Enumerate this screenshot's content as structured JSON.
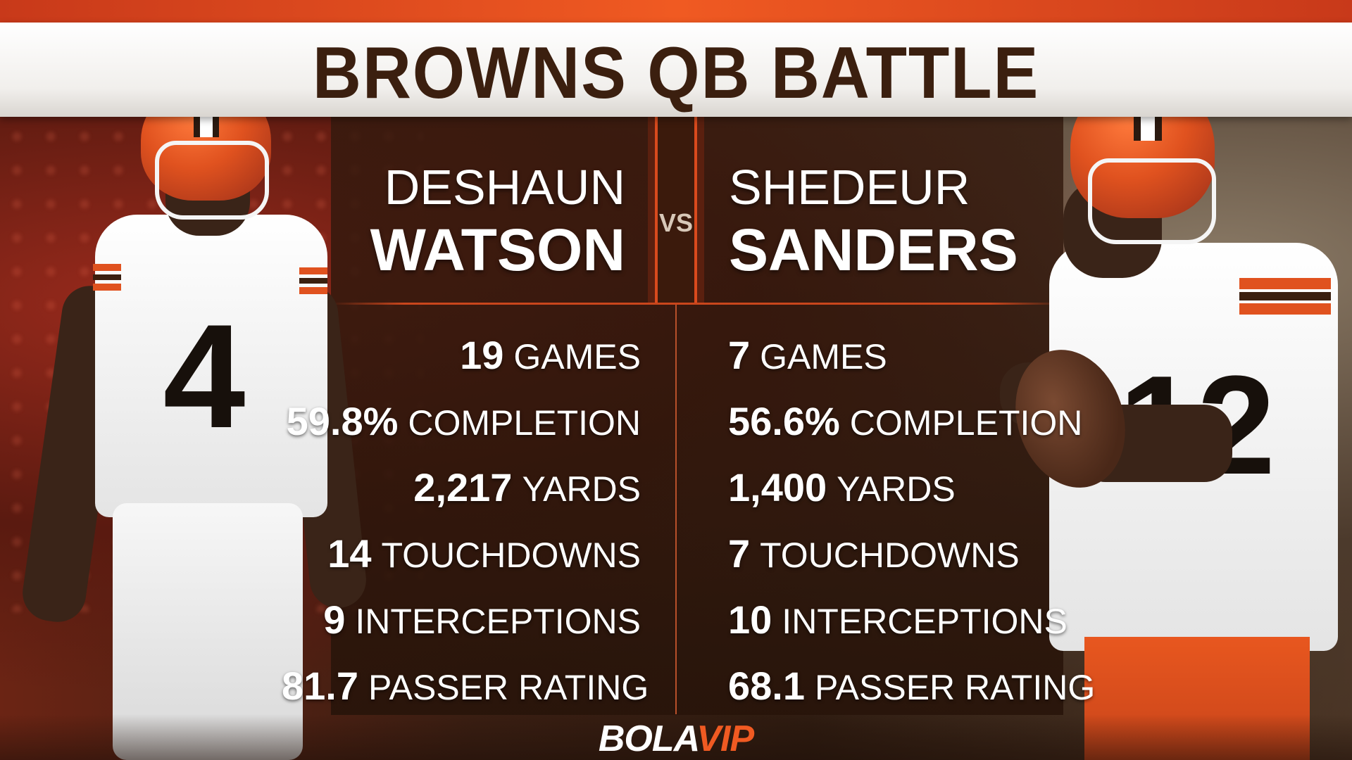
{
  "title": "BROWNS QB BATTLE",
  "vs_label": "VS",
  "left_player": {
    "first_name": "DESHAUN",
    "last_name": "WATSON",
    "jersey_number": "4",
    "stats": [
      {
        "value": "19",
        "label": "GAMES"
      },
      {
        "value": "59.8%",
        "label": "COMPLETION"
      },
      {
        "value": "2,217",
        "label": "YARDS"
      },
      {
        "value": "14",
        "label": "TOUCHDOWNS"
      },
      {
        "value": "9",
        "label": "INTERCEPTIONS"
      },
      {
        "value": "81.7",
        "label": "PASSER RATING"
      }
    ]
  },
  "right_player": {
    "first_name": "SHEDEUR",
    "last_name": "SANDERS",
    "jersey_number": "12",
    "stats": [
      {
        "value": "7",
        "label": "GAMES"
      },
      {
        "value": "56.6%",
        "label": "COMPLETION"
      },
      {
        "value": "1,400",
        "label": "YARDS"
      },
      {
        "value": "7",
        "label": "TOUCHDOWNS"
      },
      {
        "value": "10",
        "label": "INTERCEPTIONS"
      },
      {
        "value": "68.1",
        "label": "PASSER RATING"
      }
    ]
  },
  "logo": {
    "part1": "BOLA",
    "part2": "VIP"
  },
  "colors": {
    "brand_orange": "#f05a22",
    "browns_brown": "#3b1f0f",
    "panel": "#2e1a0e",
    "text": "#ffffff"
  }
}
